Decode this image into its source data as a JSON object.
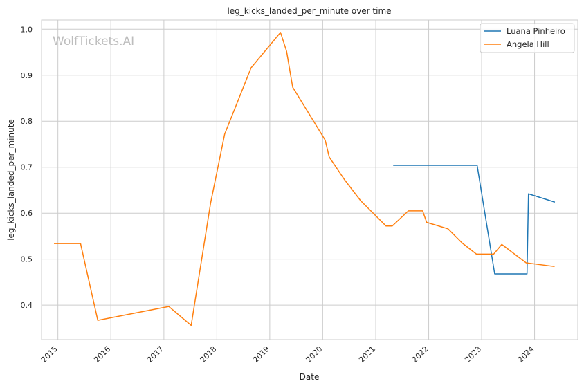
{
  "watermark": "WolfTickets.AI",
  "chart_data": {
    "type": "line",
    "title": "leg_kicks_landed_per_minute over time",
    "xlabel": "Date",
    "ylabel": "leg_kicks_landed_per_minute",
    "xlim": [
      "2014-09-10",
      "2024-10-25"
    ],
    "ylim": [
      0.325,
      1.02
    ],
    "x_ticks": [
      "2015",
      "2016",
      "2017",
      "2018",
      "2019",
      "2020",
      "2021",
      "2022",
      "2023",
      "2024"
    ],
    "y_ticks": [
      "0.4",
      "0.5",
      "0.6",
      "0.7",
      "0.8",
      "0.9",
      "1.0"
    ],
    "grid": true,
    "legend_position": "top-right",
    "series": [
      {
        "name": "Luana Pinheiro",
        "color": "#1f77b4",
        "points": [
          [
            "2021-05-01",
            0.704
          ],
          [
            "2022-12-01",
            0.704
          ],
          [
            "2023-04-01",
            0.468
          ],
          [
            "2023-11-10",
            0.468
          ],
          [
            "2023-11-20",
            0.642
          ],
          [
            "2024-05-20",
            0.624
          ]
        ]
      },
      {
        "name": "Angela Hill",
        "color": "#ff7f0e",
        "points": [
          [
            "2014-12-05",
            0.534
          ],
          [
            "2015-06-06",
            0.534
          ],
          [
            "2015-10-03",
            0.367
          ],
          [
            "2017-02-04",
            0.397
          ],
          [
            "2017-07-08",
            0.356
          ],
          [
            "2017-11-19",
            0.622
          ],
          [
            "2018-02-24",
            0.772
          ],
          [
            "2018-08-25",
            0.916
          ],
          [
            "2019-03-16",
            0.993
          ],
          [
            "2019-04-27",
            0.952
          ],
          [
            "2019-06-08",
            0.874
          ],
          [
            "2020-01-18",
            0.759
          ],
          [
            "2020-02-15",
            0.722
          ],
          [
            "2020-05-30",
            0.673
          ],
          [
            "2020-09-19",
            0.627
          ],
          [
            "2021-03-13",
            0.572
          ],
          [
            "2021-04-24",
            0.572
          ],
          [
            "2021-08-14",
            0.605
          ],
          [
            "2021-11-20",
            0.605
          ],
          [
            "2021-12-18",
            0.58
          ],
          [
            "2022-05-14",
            0.566
          ],
          [
            "2022-08-20",
            0.535
          ],
          [
            "2022-11-26",
            0.511
          ],
          [
            "2023-03-25",
            0.511
          ],
          [
            "2023-05-20",
            0.532
          ],
          [
            "2023-11-04",
            0.492
          ],
          [
            "2024-05-18",
            0.484
          ]
        ]
      }
    ]
  }
}
